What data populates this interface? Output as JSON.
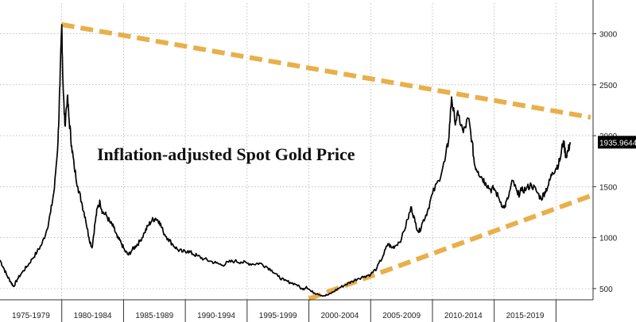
{
  "chart_data": {
    "type": "line",
    "title": "Inflation-adjusted Spot Gold Price",
    "xlabel": "",
    "ylabel": "",
    "x_period_labels": [
      "1975-1979",
      "1980-1984",
      "1985-1989",
      "1990-1994",
      "1995-1999",
      "2000-2004",
      "2005-2009",
      "2010-2014",
      "2015-2019"
    ],
    "y_ticks": [
      500,
      1000,
      1500,
      2000,
      2500,
      3000
    ],
    "ylim": [
      390,
      3300
    ],
    "xlim": [
      1975.0,
      2023.0
    ],
    "grid": true,
    "y_axis_side": "right",
    "last_value_label": "1935.9644",
    "series": [
      {
        "color": "#000000",
        "points": [
          [
            1975.0,
            780
          ],
          [
            1975.3,
            700
          ],
          [
            1975.6,
            620
          ],
          [
            1975.9,
            560
          ],
          [
            1976.1,
            520
          ],
          [
            1976.4,
            590
          ],
          [
            1976.8,
            660
          ],
          [
            1977.2,
            720
          ],
          [
            1977.6,
            790
          ],
          [
            1978.0,
            860
          ],
          [
            1978.4,
            940
          ],
          [
            1978.8,
            1080
          ],
          [
            1979.1,
            1250
          ],
          [
            1979.4,
            1480
          ],
          [
            1979.7,
            1950
          ],
          [
            1979.85,
            2500
          ],
          [
            1980.0,
            3090
          ],
          [
            1980.1,
            2500
          ],
          [
            1980.25,
            2100
          ],
          [
            1980.45,
            2380
          ],
          [
            1980.6,
            2150
          ],
          [
            1980.8,
            1900
          ],
          [
            1981.0,
            1700
          ],
          [
            1981.3,
            1500
          ],
          [
            1981.6,
            1350
          ],
          [
            1981.9,
            1200
          ],
          [
            1982.2,
            1000
          ],
          [
            1982.45,
            900
          ],
          [
            1982.7,
            1150
          ],
          [
            1982.9,
            1300
          ],
          [
            1983.1,
            1350
          ],
          [
            1983.3,
            1250
          ],
          [
            1983.6,
            1220
          ],
          [
            1983.9,
            1150
          ],
          [
            1984.2,
            1100
          ],
          [
            1984.5,
            1000
          ],
          [
            1984.8,
            950
          ],
          [
            1985.1,
            870
          ],
          [
            1985.4,
            830
          ],
          [
            1985.7,
            880
          ],
          [
            1986.0,
            920
          ],
          [
            1986.3,
            960
          ],
          [
            1986.7,
            1050
          ],
          [
            1987.0,
            1120
          ],
          [
            1987.3,
            1170
          ],
          [
            1987.6,
            1190
          ],
          [
            1987.9,
            1160
          ],
          [
            1988.2,
            1060
          ],
          [
            1988.6,
            990
          ],
          [
            1989.0,
            930
          ],
          [
            1989.4,
            880
          ],
          [
            1989.8,
            860
          ],
          [
            1990.2,
            870
          ],
          [
            1990.6,
            840
          ],
          [
            1991.0,
            820
          ],
          [
            1991.5,
            790
          ],
          [
            1992.0,
            770
          ],
          [
            1992.5,
            750
          ],
          [
            1993.0,
            730
          ],
          [
            1993.5,
            760
          ],
          [
            1994.0,
            770
          ],
          [
            1994.5,
            760
          ],
          [
            1995.0,
            750
          ],
          [
            1995.5,
            740
          ],
          [
            1996.0,
            750
          ],
          [
            1996.5,
            720
          ],
          [
            1997.0,
            680
          ],
          [
            1997.5,
            620
          ],
          [
            1998.0,
            580
          ],
          [
            1998.5,
            560
          ],
          [
            1999.0,
            540
          ],
          [
            1999.5,
            490
          ],
          [
            1999.8,
            520
          ],
          [
            2000.2,
            470
          ],
          [
            2000.7,
            450
          ],
          [
            2001.2,
            430
          ],
          [
            2001.6,
            440
          ],
          [
            2002.0,
            470
          ],
          [
            2002.5,
            510
          ],
          [
            2003.0,
            540
          ],
          [
            2003.5,
            570
          ],
          [
            2004.0,
            600
          ],
          [
            2004.5,
            620
          ],
          [
            2005.0,
            640
          ],
          [
            2005.5,
            700
          ],
          [
            2006.0,
            820
          ],
          [
            2006.4,
            940
          ],
          [
            2006.7,
            900
          ],
          [
            2007.0,
            920
          ],
          [
            2007.5,
            990
          ],
          [
            2008.0,
            1180
          ],
          [
            2008.3,
            1300
          ],
          [
            2008.6,
            1150
          ],
          [
            2008.9,
            1050
          ],
          [
            2009.2,
            1150
          ],
          [
            2009.6,
            1260
          ],
          [
            2010.0,
            1430
          ],
          [
            2010.5,
            1560
          ],
          [
            2011.0,
            1750
          ],
          [
            2011.3,
            1950
          ],
          [
            2011.55,
            2380
          ],
          [
            2011.8,
            2150
          ],
          [
            2012.1,
            2200
          ],
          [
            2012.5,
            2030
          ],
          [
            2012.9,
            2170
          ],
          [
            2013.2,
            1950
          ],
          [
            2013.4,
            1720
          ],
          [
            2013.7,
            1650
          ],
          [
            2014.0,
            1590
          ],
          [
            2014.3,
            1540
          ],
          [
            2014.7,
            1470
          ],
          [
            2015.0,
            1480
          ],
          [
            2015.4,
            1380
          ],
          [
            2015.8,
            1290
          ],
          [
            2016.1,
            1380
          ],
          [
            2016.5,
            1560
          ],
          [
            2016.9,
            1420
          ],
          [
            2017.2,
            1460
          ],
          [
            2017.6,
            1480
          ],
          [
            2018.0,
            1520
          ],
          [
            2018.4,
            1460
          ],
          [
            2018.8,
            1380
          ],
          [
            2019.1,
            1450
          ],
          [
            2019.4,
            1520
          ],
          [
            2019.7,
            1640
          ],
          [
            2020.0,
            1680
          ],
          [
            2020.3,
            1750
          ],
          [
            2020.6,
            1950
          ],
          [
            2020.8,
            1800
          ],
          [
            2021.0,
            1860
          ],
          [
            2021.15,
            1935.96
          ]
        ]
      }
    ],
    "trendlines": [
      {
        "color": "#e8b04a",
        "points": [
          [
            1980.0,
            3090
          ],
          [
            2022.8,
            2180
          ]
        ]
      },
      {
        "color": "#e8b04a",
        "points": [
          [
            2000.0,
            400
          ],
          [
            2022.8,
            1410
          ]
        ]
      }
    ]
  }
}
